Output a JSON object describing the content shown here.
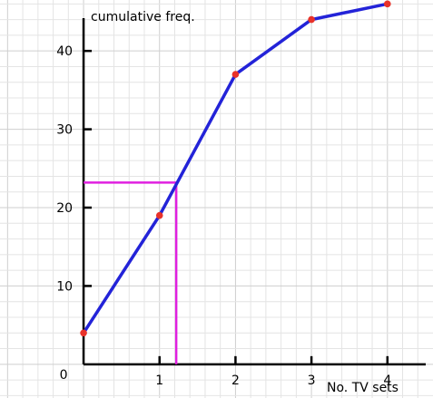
{
  "chart_data": {
    "type": "line",
    "title": "",
    "xlabel": "No. TV sets",
    "ylabel": "cumulative freq.",
    "xlim": [
      -1.1,
      4.6
    ],
    "ylim": [
      -4.3,
      46.5
    ],
    "x_ticks": [
      1,
      2,
      3,
      4
    ],
    "y_ticks": [
      10,
      20,
      30,
      40
    ],
    "origin_label": "0",
    "grid": true,
    "series": [
      {
        "x": [
          0,
          1,
          2,
          3,
          4
        ],
        "y": [
          4,
          19,
          37,
          44,
          46
        ]
      }
    ],
    "guide": {
      "x": 1.22,
      "y": 23.2
    },
    "colors": {
      "line": "#2323d8",
      "points": "#e8322a",
      "guide": "#e020e0",
      "axes": "#000000"
    }
  }
}
